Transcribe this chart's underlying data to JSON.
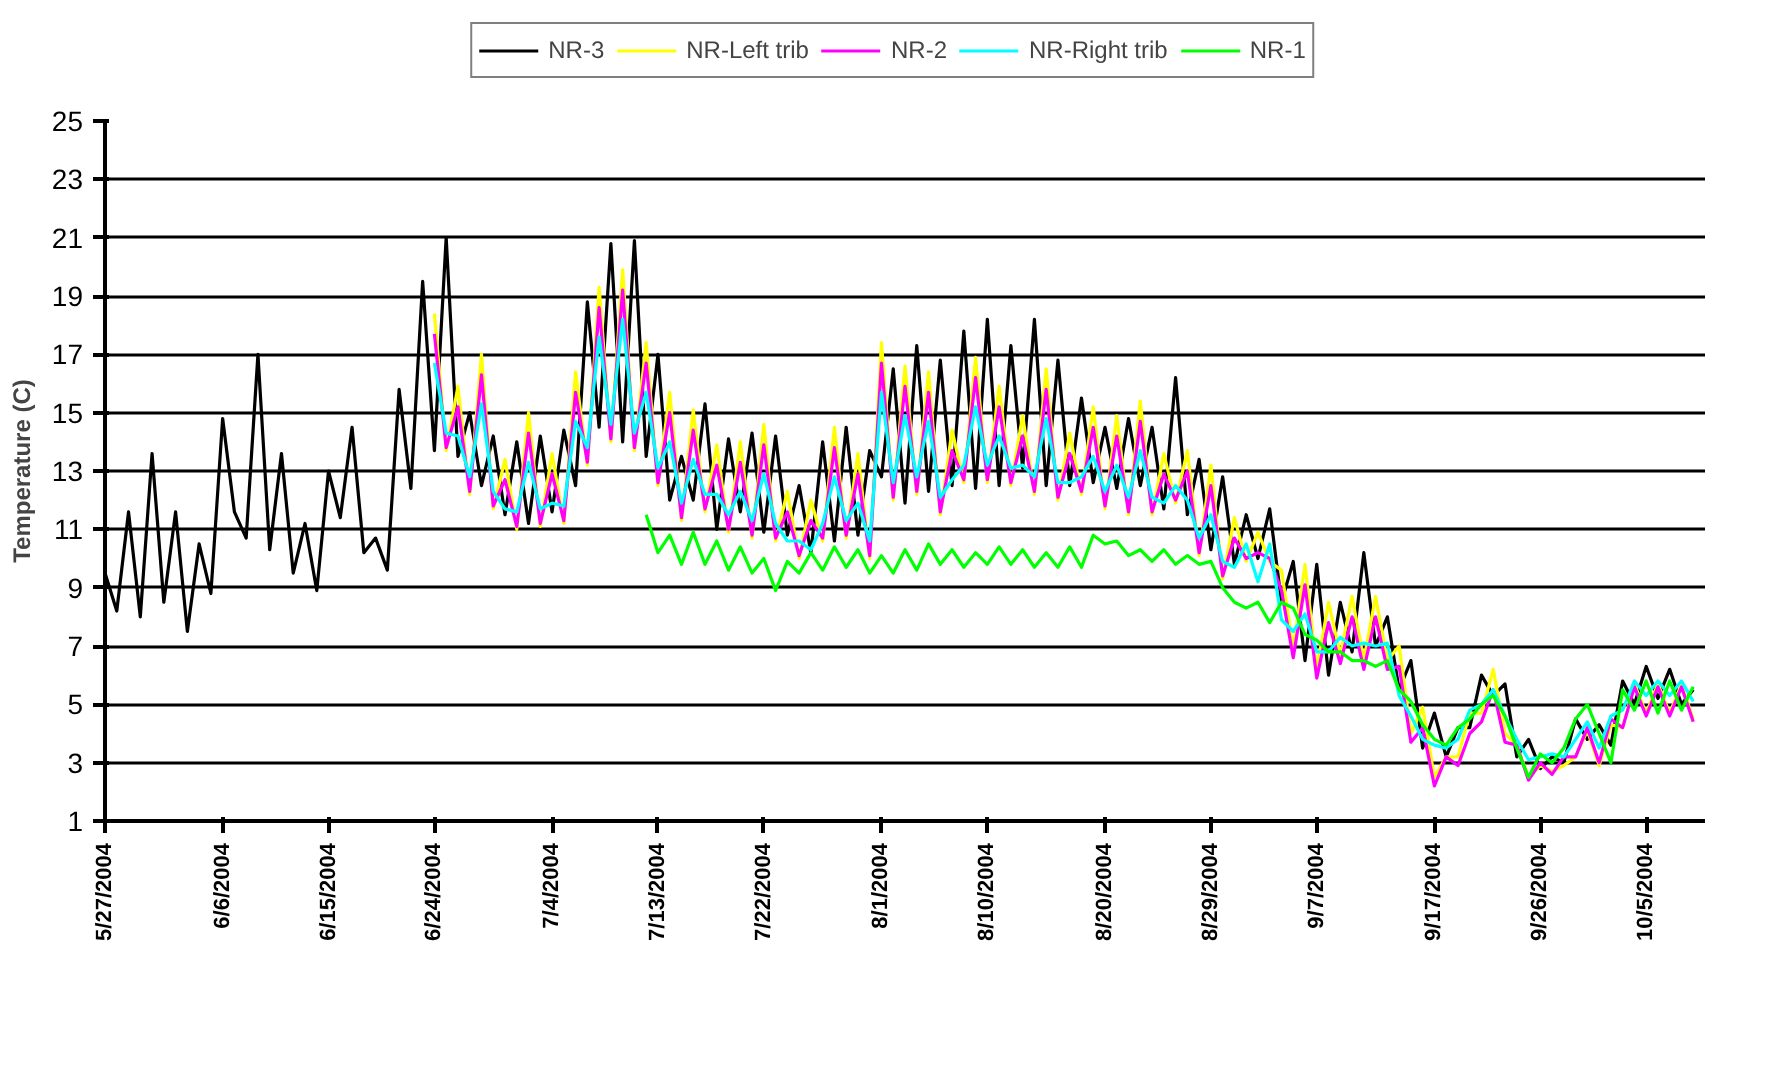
{
  "chart_data": {
    "type": "line",
    "ylabel": "Temperature (C)",
    "x": [
      "2004-05-27",
      "2004-05-28",
      "2004-05-29",
      "2004-05-30",
      "2004-05-31",
      "2004-06-01",
      "2004-06-02",
      "2004-06-03",
      "2004-06-04",
      "2004-06-05",
      "2004-06-06",
      "2004-06-07",
      "2004-06-08",
      "2004-06-09",
      "2004-06-10",
      "2004-06-11",
      "2004-06-12",
      "2004-06-13",
      "2004-06-14",
      "2004-06-15",
      "2004-06-16",
      "2004-06-17",
      "2004-06-18",
      "2004-06-19",
      "2004-06-20",
      "2004-06-21",
      "2004-06-22",
      "2004-06-23",
      "2004-06-24",
      "2004-06-25",
      "2004-06-26",
      "2004-06-27",
      "2004-06-28",
      "2004-06-29",
      "2004-06-30",
      "2004-07-01",
      "2004-07-02",
      "2004-07-03",
      "2004-07-04",
      "2004-07-05",
      "2004-07-06",
      "2004-07-07",
      "2004-07-08",
      "2004-07-09",
      "2004-07-10",
      "2004-07-11",
      "2004-07-12",
      "2004-07-13",
      "2004-07-14",
      "2004-07-15",
      "2004-07-16",
      "2004-07-17",
      "2004-07-18",
      "2004-07-19",
      "2004-07-20",
      "2004-07-21",
      "2004-07-22",
      "2004-07-23",
      "2004-07-24",
      "2004-07-25",
      "2004-07-26",
      "2004-07-27",
      "2004-07-28",
      "2004-07-29",
      "2004-07-30",
      "2004-07-31",
      "2004-08-01",
      "2004-08-02",
      "2004-08-03",
      "2004-08-04",
      "2004-08-05",
      "2004-08-06",
      "2004-08-07",
      "2004-08-08",
      "2004-08-09",
      "2004-08-10",
      "2004-08-11",
      "2004-08-12",
      "2004-08-13",
      "2004-08-14",
      "2004-08-15",
      "2004-08-16",
      "2004-08-17",
      "2004-08-18",
      "2004-08-19",
      "2004-08-20",
      "2004-08-21",
      "2004-08-22",
      "2004-08-23",
      "2004-08-24",
      "2004-08-25",
      "2004-08-26",
      "2004-08-27",
      "2004-08-28",
      "2004-08-29",
      "2004-08-30",
      "2004-08-31",
      "2004-09-01",
      "2004-09-02",
      "2004-09-03",
      "2004-09-04",
      "2004-09-05",
      "2004-09-06",
      "2004-09-07",
      "2004-09-08",
      "2004-09-09",
      "2004-09-10",
      "2004-09-11",
      "2004-09-12",
      "2004-09-13",
      "2004-09-14",
      "2004-09-15",
      "2004-09-16",
      "2004-09-17",
      "2004-09-18",
      "2004-09-19",
      "2004-09-20",
      "2004-09-21",
      "2004-09-22",
      "2004-09-23",
      "2004-09-24",
      "2004-09-25",
      "2004-09-26",
      "2004-09-27",
      "2004-09-28",
      "2004-09-29",
      "2004-09-30",
      "2004-10-01",
      "2004-10-02",
      "2004-10-03",
      "2004-10-04",
      "2004-10-05",
      "2004-10-06",
      "2004-10-07",
      "2004-10-08",
      "2004-10-09"
    ],
    "series": [
      {
        "name": "NR-3",
        "color": "#000000",
        "values": [
          9.5,
          8.2,
          11.6,
          8,
          13.6,
          8.5,
          11.6,
          7.5,
          10.5,
          8.8,
          14.8,
          11.6,
          10.7,
          17,
          10.3,
          13.6,
          9.5,
          11.2,
          8.9,
          13,
          11.4,
          14.5,
          10.2,
          10.7,
          9.6,
          15.8,
          12.4,
          19.5,
          13.7,
          21,
          13.5,
          15,
          12.5,
          14.2,
          11.5,
          14,
          11.2,
          14.2,
          11.6,
          14.4,
          12.5,
          18.8,
          14.5,
          20.8,
          14,
          20.9,
          13.5,
          17,
          12,
          13.5,
          12,
          15.3,
          11,
          14.1,
          11.6,
          14.3,
          10.9,
          14.2,
          10.8,
          12.5,
          10.2,
          14,
          10.6,
          14.5,
          10.8,
          13.7,
          12.8,
          16.5,
          11.9,
          17.3,
          12.3,
          16.8,
          12.5,
          17.8,
          12.4,
          18.2,
          12.5,
          17.3,
          13.1,
          18.2,
          12.5,
          16.8,
          12.5,
          15.5,
          12.6,
          14.5,
          12.4,
          14.8,
          12.5,
          14.5,
          11.7,
          16.2,
          11.5,
          13.4,
          10.3,
          12.8,
          9.8,
          11.5,
          10,
          11.7,
          8.5,
          9.9,
          6.5,
          9.8,
          6,
          8.5,
          6.8,
          10.2,
          7,
          8,
          5.5,
          6.5,
          3.5,
          4.7,
          3.2,
          4.2,
          4.2,
          6,
          5.3,
          5.7,
          3.2,
          3.8,
          2.8,
          3.2,
          3,
          4.5,
          3.8,
          4.3,
          3.6,
          5.8,
          5,
          6.3,
          5.2,
          6.2,
          5,
          5.5
        ]
      },
      {
        "name": "NR-Left trib",
        "color": "#ffff00",
        "values": [
          null,
          null,
          null,
          null,
          null,
          null,
          null,
          null,
          null,
          null,
          null,
          null,
          null,
          null,
          null,
          null,
          null,
          null,
          null,
          null,
          null,
          null,
          null,
          null,
          null,
          null,
          null,
          null,
          18.4,
          13.7,
          15.9,
          12.2,
          17.0,
          11.7,
          13.4,
          11.0,
          15.0,
          11.1,
          13.6,
          11.2,
          16.4,
          13.2,
          19.3,
          14.0,
          19.9,
          13.7,
          17.4,
          12.5,
          15.7,
          11.3,
          15.1,
          11.6,
          13.9,
          10.9,
          14.0,
          10.7,
          14.6,
          10.6,
          12.3,
          10.0,
          12.0,
          10.6,
          14.5,
          10.7,
          13.6,
          10.0,
          17.4,
          12.0,
          16.6,
          12.2,
          16.4,
          11.5,
          14.4,
          12.6,
          16.9,
          12.6,
          15.9,
          12.5,
          14.9,
          12.2,
          16.5,
          12.0,
          14.3,
          12.2,
          15.2,
          11.7,
          14.9,
          11.5,
          15.4,
          11.5,
          13.6,
          11.9,
          13.7,
          10.1,
          13.2,
          9.3,
          11.4,
          9.9,
          10.9,
          9.9,
          9.6,
          6.9,
          9.8,
          6.2,
          8.5,
          6.7,
          8.7,
          6.5,
          8.7,
          6.5,
          7.0,
          4.0,
          4.9,
          2.5,
          3.2,
          3.2,
          4.7,
          4.7,
          6.2,
          4.0,
          3.6,
          2.5,
          2.9,
          2.7,
          2.9,
          3.2,
          4.1,
          2.9,
          4.3,
          4.2,
          5.7,
          4.7,
          5.7,
          4.7,
          5.7,
          4.5
        ]
      },
      {
        "name": "NR-2",
        "color": "#ff00ff",
        "values": [
          null,
          null,
          null,
          null,
          null,
          null,
          null,
          null,
          null,
          null,
          null,
          null,
          null,
          null,
          null,
          null,
          null,
          null,
          null,
          null,
          null,
          null,
          null,
          null,
          null,
          null,
          null,
          null,
          17.7,
          13.8,
          15.2,
          12.3,
          16.3,
          11.8,
          12.7,
          11.1,
          14.3,
          11.2,
          12.9,
          11.3,
          15.7,
          13.3,
          18.6,
          14.1,
          19.2,
          13.8,
          16.7,
          12.6,
          15.0,
          11.4,
          14.4,
          11.7,
          13.2,
          11.0,
          13.3,
          10.8,
          13.9,
          10.7,
          11.6,
          10.1,
          11.3,
          10.7,
          13.8,
          10.8,
          12.9,
          10.1,
          16.7,
          12.1,
          15.9,
          12.3,
          15.7,
          11.6,
          13.7,
          12.7,
          16.2,
          12.7,
          15.2,
          12.6,
          14.2,
          12.3,
          15.8,
          12.1,
          13.6,
          12.3,
          14.5,
          11.8,
          14.2,
          11.6,
          14.7,
          11.6,
          12.9,
          12.0,
          13.0,
          10.2,
          12.5,
          9.4,
          10.7,
          10.0,
          10.2,
          10.0,
          8.9,
          6.6,
          9.1,
          5.9,
          7.8,
          6.4,
          8.0,
          6.2,
          8.0,
          6.2,
          6.3,
          3.7,
          4.2,
          2.2,
          3.2,
          2.9,
          4.0,
          4.4,
          5.5,
          3.7,
          3.6,
          2.4,
          3.0,
          2.6,
          3.2,
          3.2,
          4.2,
          3.0,
          4.5,
          4.2,
          5.6,
          4.6,
          5.6,
          4.6,
          5.6,
          4.4
        ]
      },
      {
        "name": "NR-Right trib",
        "color": "#00ffff",
        "values": [
          null,
          null,
          null,
          null,
          null,
          null,
          null,
          null,
          null,
          null,
          null,
          null,
          null,
          null,
          null,
          null,
          null,
          null,
          null,
          null,
          null,
          null,
          null,
          null,
          null,
          null,
          null,
          null,
          16.7,
          14.3,
          14.2,
          12.8,
          15.3,
          12.3,
          11.7,
          11.6,
          13.3,
          11.7,
          11.9,
          11.8,
          14.7,
          13.8,
          17.6,
          14.6,
          18.2,
          14.3,
          15.7,
          13.1,
          14.0,
          11.9,
          13.4,
          12.2,
          12.2,
          11.5,
          12.3,
          11.3,
          12.9,
          11.2,
          10.6,
          10.6,
          10.3,
          11.2,
          12.8,
          11.3,
          11.9,
          10.6,
          15.7,
          12.6,
          14.9,
          12.8,
          14.7,
          12.1,
          12.7,
          13.2,
          15.2,
          13.2,
          14.2,
          13.1,
          13.2,
          12.8,
          14.8,
          12.6,
          12.6,
          12.8,
          13.5,
          12.3,
          13.2,
          12.1,
          13.7,
          12.1,
          11.9,
          12.5,
          12.0,
          10.7,
          11.5,
          9.9,
          9.7,
          10.5,
          9.2,
          10.5,
          7.9,
          7.5,
          8.1,
          6.8,
          6.8,
          7.3,
          7.0,
          7.1,
          7.0,
          7.1,
          5.3,
          4.6,
          3.8,
          3.6,
          3.5,
          3.8,
          4.8,
          5.0,
          5.5,
          4.6,
          3.8,
          3.1,
          3.2,
          3.3,
          3.2,
          3.8,
          4.4,
          3.5,
          4.6,
          4.8,
          5.8,
          5.3,
          5.8,
          5.3,
          5.8,
          5.1
        ]
      },
      {
        "name": "NR-1",
        "color": "#00ff00",
        "values": [
          null,
          null,
          null,
          null,
          null,
          null,
          null,
          null,
          null,
          null,
          null,
          null,
          null,
          null,
          null,
          null,
          null,
          null,
          null,
          null,
          null,
          null,
          null,
          null,
          null,
          null,
          null,
          null,
          null,
          null,
          null,
          null,
          null,
          null,
          null,
          null,
          null,
          null,
          null,
          null,
          null,
          null,
          null,
          null,
          null,
          null,
          11.5,
          10.2,
          10.8,
          9.8,
          10.9,
          9.8,
          10.6,
          9.6,
          10.4,
          9.5,
          10,
          8.9,
          9.9,
          9.5,
          10.2,
          9.6,
          10.4,
          9.7,
          10.3,
          9.5,
          10.1,
          9.5,
          10.3,
          9.6,
          10.5,
          9.8,
          10.3,
          9.7,
          10.2,
          9.8,
          10.4,
          9.8,
          10.3,
          9.7,
          10.2,
          9.7,
          10.4,
          9.7,
          10.8,
          10.5,
          10.6,
          10.1,
          10.3,
          9.9,
          10.3,
          9.8,
          10.1,
          9.8,
          9.9,
          9,
          8.5,
          8.3,
          8.5,
          7.8,
          8.5,
          8.3,
          7.4,
          7.2,
          6.8,
          6.8,
          6.5,
          6.5,
          6.3,
          6.5,
          5.5,
          5.1,
          4.3,
          3.8,
          3.6,
          4.2,
          4.5,
          5.0,
          5.3,
          4.6,
          3.5,
          2.5,
          3.3,
          3.0,
          3.5,
          4.5,
          5.0,
          4.0,
          3.0,
          5.5,
          4.8,
          5.8,
          4.7,
          5.8,
          4.8,
          5.6
        ]
      }
    ],
    "xlim": [
      "2004-05-27",
      "2004-10-10"
    ],
    "xticks": [
      {
        "value": "2004-05-27",
        "label": "5/27/2004"
      },
      {
        "value": "2004-06-06",
        "label": "6/6/2004"
      },
      {
        "value": "2004-06-15",
        "label": "6/15/2004"
      },
      {
        "value": "2004-06-24",
        "label": "6/24/2004"
      },
      {
        "value": "2004-07-04",
        "label": "7/4/2004"
      },
      {
        "value": "2004-07-13",
        "label": "7/13/2004"
      },
      {
        "value": "2004-07-22",
        "label": "7/22/2004"
      },
      {
        "value": "2004-08-01",
        "label": "8/1/2004"
      },
      {
        "value": "2004-08-10",
        "label": "8/10/2004"
      },
      {
        "value": "2004-08-20",
        "label": "8/20/2004"
      },
      {
        "value": "2004-08-29",
        "label": "8/29/2004"
      },
      {
        "value": "2004-09-07",
        "label": "9/7/2004"
      },
      {
        "value": "2004-09-17",
        "label": "9/17/2004"
      },
      {
        "value": "2004-09-26",
        "label": "9/26/2004"
      },
      {
        "value": "2004-10-05",
        "label": "10/5/2004"
      }
    ],
    "ylim": [
      1,
      25
    ],
    "yticks": [
      1,
      3,
      5,
      7,
      9,
      11,
      13,
      15,
      17,
      19,
      21,
      23,
      25
    ],
    "grid": "y",
    "legend": "top",
    "marker": "none",
    "line_style": "solid"
  }
}
